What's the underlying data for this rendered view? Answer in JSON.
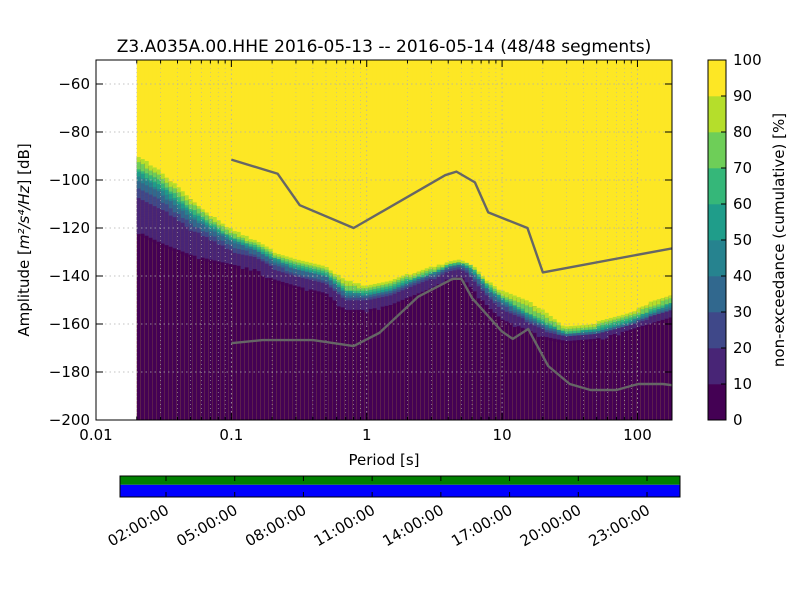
{
  "chart_data": {
    "type": "heatmap",
    "title": "Z3.A035A.00.HHE   2016-05-13 -- 2016-05-14  (48/48 segments)",
    "xlabel": "Period [s]",
    "ylabel_prefix": "Amplitude [",
    "ylabel_math": "m²/s⁴/Hz",
    "ylabel_suffix": "] [dB]",
    "x_scale": "log",
    "xlim": [
      0.01,
      180
    ],
    "ylim": [
      -200,
      -50
    ],
    "x_ticks": [
      {
        "value": 0.01,
        "label": "0.01"
      },
      {
        "value": 0.1,
        "label": "0.1"
      },
      {
        "value": 1,
        "label": "1"
      },
      {
        "value": 10,
        "label": "10"
      },
      {
        "value": 100,
        "label": "100"
      }
    ],
    "y_ticks": [
      {
        "value": -60,
        "label": "−60"
      },
      {
        "value": -80,
        "label": "−80"
      },
      {
        "value": -100,
        "label": "−100"
      },
      {
        "value": -120,
        "label": "−120"
      },
      {
        "value": -140,
        "label": "−140"
      },
      {
        "value": -160,
        "label": "−160"
      },
      {
        "value": -180,
        "label": "−180"
      },
      {
        "value": -200,
        "label": "−200"
      }
    ],
    "grid": true,
    "data_period_min": 0.02,
    "colorbar": {
      "label": "non-exceedance (cumulative) [%]",
      "range": [
        0,
        100
      ],
      "ticks": [
        "0",
        "10",
        "20",
        "30",
        "40",
        "50",
        "60",
        "70",
        "80",
        "90",
        "100"
      ],
      "colormap": "viridis-discrete"
    },
    "psd_percentiles": [
      {
        "pct": 0,
        "color": "#440154"
      },
      {
        "pct": 10,
        "color": "#482576"
      },
      {
        "pct": 20,
        "color": "#3f4889"
      },
      {
        "pct": 30,
        "color": "#31688e"
      },
      {
        "pct": 40,
        "color": "#26838f"
      },
      {
        "pct": 50,
        "color": "#1f9d8a"
      },
      {
        "pct": 60,
        "color": "#35b779"
      },
      {
        "pct": 70,
        "color": "#6ece58"
      },
      {
        "pct": 80,
        "color": "#b5de2b"
      },
      {
        "pct": 90,
        "color": "#fde725"
      }
    ],
    "psd_bands": [
      {
        "x": 0.02,
        "b5": -122,
        "b15": -107,
        "b30": -100,
        "b60": -95,
        "b90": -90
      },
      {
        "x": 0.03,
        "b5": -127,
        "b15": -112,
        "b30": -106,
        "b60": -101,
        "b90": -97
      },
      {
        "x": 0.05,
        "b5": -132,
        "b15": -121,
        "b30": -116,
        "b60": -112,
        "b90": -108
      },
      {
        "x": 0.07,
        "b5": -134,
        "b15": -125,
        "b30": -121,
        "b60": -118,
        "b90": -115
      },
      {
        "x": 0.1,
        "b5": -136,
        "b15": -130,
        "b30": -126,
        "b60": -124,
        "b90": -121
      },
      {
        "x": 0.15,
        "b5": -138,
        "b15": -133,
        "b30": -130,
        "b60": -128,
        "b90": -126
      },
      {
        "x": 0.2,
        "b5": -142,
        "b15": -137,
        "b30": -134,
        "b60": -132,
        "b90": -130
      },
      {
        "x": 0.3,
        "b5": -145,
        "b15": -141,
        "b30": -138,
        "b60": -136,
        "b90": -134
      },
      {
        "x": 0.5,
        "b5": -148,
        "b15": -144,
        "b30": -141,
        "b60": -139,
        "b90": -137
      },
      {
        "x": 0.7,
        "b5": -155,
        "b15": -151,
        "b30": -148,
        "b60": -146,
        "b90": -142
      },
      {
        "x": 1.0,
        "b5": -155,
        "b15": -151,
        "b30": -149,
        "b60": -147,
        "b90": -145
      },
      {
        "x": 1.5,
        "b5": -153,
        "b15": -149,
        "b30": -147,
        "b60": -145,
        "b90": -143
      },
      {
        "x": 2.0,
        "b5": -150,
        "b15": -146,
        "b30": -144,
        "b60": -142,
        "b90": -140
      },
      {
        "x": 3.0,
        "b5": -146,
        "b15": -142,
        "b30": -140,
        "b60": -139,
        "b90": -137
      },
      {
        "x": 4.0,
        "b5": -142,
        "b15": -139,
        "b30": -137,
        "b60": -136,
        "b90": -135
      },
      {
        "x": 5.0,
        "b5": -141,
        "b15": -138,
        "b30": -136,
        "b60": -135,
        "b90": -134
      },
      {
        "x": 6.0,
        "b5": -146,
        "b15": -141,
        "b30": -139,
        "b60": -137,
        "b90": -136
      },
      {
        "x": 8.0,
        "b5": -154,
        "b15": -150,
        "b30": -147,
        "b60": -145,
        "b90": -143
      },
      {
        "x": 10.0,
        "b5": -159,
        "b15": -154,
        "b30": -151,
        "b60": -149,
        "b90": -147
      },
      {
        "x": 15.0,
        "b5": -163,
        "b15": -159,
        "b30": -157,
        "b60": -155,
        "b90": -150
      },
      {
        "x": 20.0,
        "b5": -166,
        "b15": -163,
        "b30": -161,
        "b60": -159,
        "b90": -155
      },
      {
        "x": 30.0,
        "b5": -168,
        "b15": -166,
        "b30": -165,
        "b60": -164,
        "b90": -162
      },
      {
        "x": 50.0,
        "b5": -167,
        "b15": -165,
        "b30": -164,
        "b60": -162,
        "b90": -160
      },
      {
        "x": 80.0,
        "b5": -164,
        "b15": -162,
        "b30": -161,
        "b60": -159,
        "b90": -157
      },
      {
        "x": 120.0,
        "b5": -161,
        "b15": -158,
        "b30": -157,
        "b60": -155,
        "b90": -152
      },
      {
        "x": 180.0,
        "b5": -158,
        "b15": -155,
        "b30": -153,
        "b60": -151,
        "b90": -148
      }
    ],
    "noise_models": [
      {
        "points": [
          [
            0.1,
            -91.5
          ],
          [
            0.22,
            -97.4
          ],
          [
            0.32,
            -110.5
          ],
          [
            0.8,
            -120
          ],
          [
            3.8,
            -98
          ],
          [
            4.6,
            -96.5
          ],
          [
            6.3,
            -101
          ],
          [
            7.9,
            -113.5
          ],
          [
            15.4,
            -120
          ],
          [
            20,
            -138.5
          ],
          [
            180,
            -128.5
          ]
        ]
      },
      {
        "points": [
          [
            0.1,
            -168
          ],
          [
            0.17,
            -166.7
          ],
          [
            0.4,
            -166.7
          ],
          [
            0.8,
            -169.2
          ],
          [
            1.24,
            -163.7
          ],
          [
            2.4,
            -148.6
          ],
          [
            4.3,
            -141.2
          ],
          [
            5.0,
            -141.1
          ],
          [
            6.0,
            -149.2
          ],
          [
            10.0,
            -163.2
          ],
          [
            12.0,
            -166.2
          ],
          [
            15.6,
            -162.1
          ],
          [
            21.9,
            -177.5
          ],
          [
            31.6,
            -185
          ],
          [
            45,
            -187.5
          ],
          [
            70,
            -187.5
          ],
          [
            101,
            -185
          ],
          [
            154,
            -185
          ],
          [
            180,
            -185.5
          ]
        ]
      }
    ],
    "coverage": {
      "tick_labels": [
        "02:00:00",
        "05:00:00",
        "08:00:00",
        "11:00:00",
        "14:00:00",
        "17:00:00",
        "20:00:00",
        "23:00:00"
      ],
      "data_color": "#008000",
      "psd_color": "#0000ff"
    }
  }
}
